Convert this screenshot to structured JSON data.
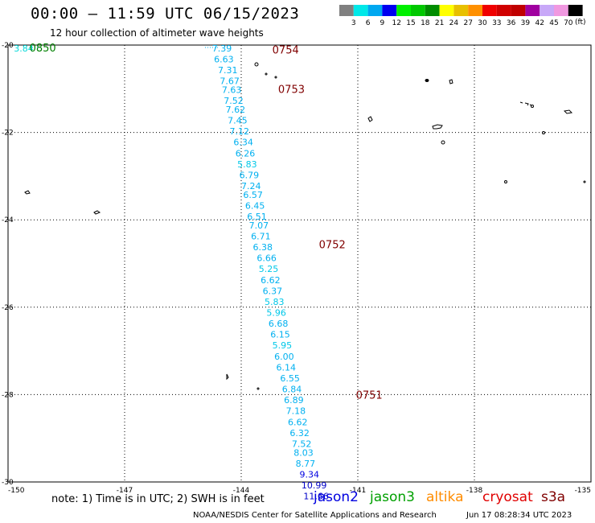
{
  "title": "00:00 – 11:59 UTC 06/15/2023",
  "subtitle": "12 hour collection of altimeter wave heights",
  "units_label": "(ft)",
  "color_scale": {
    "colors": [
      "#808080",
      "#00e8e8",
      "#00a8f0",
      "#0000f0",
      "#00f000",
      "#00c800",
      "#008c00",
      "#ffff00",
      "#e8c000",
      "#ff9000",
      "#f00000",
      "#d00000",
      "#c00000",
      "#a000a0",
      "#c8a8f8",
      "#f098e0",
      "#000000"
    ],
    "labels": [
      "3",
      "6",
      "9",
      "12",
      "15",
      "18",
      "21",
      "24",
      "27",
      "30",
      "33",
      "36",
      "39",
      "42",
      "45",
      "70"
    ]
  },
  "axes": {
    "lon_range": [
      -150,
      -135
    ],
    "lat_range": [
      -30,
      -20
    ],
    "lon_ticks": [
      "-150",
      "-147",
      "-144",
      "-141",
      "-138",
      "-135"
    ],
    "lat_ticks": [
      "-20",
      "-22",
      "-24",
      "-26",
      "-28",
      "-30"
    ]
  },
  "passes": [
    {
      "time": "0850",
      "color": "#008000",
      "lon": -149.45,
      "lat": -20.0
    },
    {
      "time": "0754",
      "color": "#800000",
      "lon": -143.2,
      "lat": -20.05
    },
    {
      "time": "0753",
      "color": "#800000",
      "lon": -143.05,
      "lat": -20.95
    },
    {
      "time": "0752",
      "color": "#800000",
      "lon": -142.0,
      "lat": -24.5
    },
    {
      "time": "0751",
      "color": "#800000",
      "lon": -141.05,
      "lat": -27.95
    }
  ],
  "green_track_values": [
    {
      "value": "3.84",
      "color": "#00d8d8",
      "lon": -149.85,
      "lat": -20.0
    }
  ],
  "swh_values": [
    {
      "value": "7.39",
      "color": "#00b0f0",
      "lon": -144.75,
      "lat": -20.0
    },
    {
      "value": "6.63",
      "color": "#00b0f0",
      "lon": -144.7,
      "lat": -20.25
    },
    {
      "value": "7.31",
      "color": "#00b0f0",
      "lon": -144.6,
      "lat": -20.5
    },
    {
      "value": "7.67",
      "color": "#00b0f0",
      "lon": -144.55,
      "lat": -20.75
    },
    {
      "value": "7.63",
      "color": "#00b0f0",
      "lon": -144.5,
      "lat": -20.95
    },
    {
      "value": "7.52",
      "color": "#00b0f0",
      "lon": -144.45,
      "lat": -21.2
    },
    {
      "value": "7.62",
      "color": "#00b0f0",
      "lon": -144.4,
      "lat": -21.4
    },
    {
      "value": "7.45",
      "color": "#00b0f0",
      "lon": -144.35,
      "lat": -21.65
    },
    {
      "value": "7.12",
      "color": "#00b0f0",
      "lon": -144.3,
      "lat": -21.9
    },
    {
      "value": "6.34",
      "color": "#00b0f0",
      "lon": -144.2,
      "lat": -22.15
    },
    {
      "value": "6.26",
      "color": "#00b0f0",
      "lon": -144.15,
      "lat": -22.4
    },
    {
      "value": "5.83",
      "color": "#00c8e8",
      "lon": -144.1,
      "lat": -22.65
    },
    {
      "value": "6.79",
      "color": "#00b0f0",
      "lon": -144.05,
      "lat": -22.9
    },
    {
      "value": "7.24",
      "color": "#00b0f0",
      "lon": -144.0,
      "lat": -23.15
    },
    {
      "value": "6.57",
      "color": "#00b0f0",
      "lon": -143.95,
      "lat": -23.35
    },
    {
      "value": "6.45",
      "color": "#00b0f0",
      "lon": -143.9,
      "lat": -23.6
    },
    {
      "value": "6.51",
      "color": "#00b0f0",
      "lon": -143.85,
      "lat": -23.85
    },
    {
      "value": "7.07",
      "color": "#00b0f0",
      "lon": -143.8,
      "lat": -24.05
    },
    {
      "value": "6.71",
      "color": "#00b0f0",
      "lon": -143.75,
      "lat": -24.3
    },
    {
      "value": "6.38",
      "color": "#00b0f0",
      "lon": -143.7,
      "lat": -24.55
    },
    {
      "value": "6.66",
      "color": "#00b0f0",
      "lon": -143.6,
      "lat": -24.8
    },
    {
      "value": "5.25",
      "color": "#00c8e8",
      "lon": -143.55,
      "lat": -25.05
    },
    {
      "value": "6.62",
      "color": "#00b0f0",
      "lon": -143.5,
      "lat": -25.3
    },
    {
      "value": "6.37",
      "color": "#00b0f0",
      "lon": -143.45,
      "lat": -25.55
    },
    {
      "value": "5.83",
      "color": "#00c8e8",
      "lon": -143.4,
      "lat": -25.8
    },
    {
      "value": "5.96",
      "color": "#00c8e8",
      "lon": -143.35,
      "lat": -26.05
    },
    {
      "value": "6.68",
      "color": "#00b0f0",
      "lon": -143.3,
      "lat": -26.3
    },
    {
      "value": "6.15",
      "color": "#00b0f0",
      "lon": -143.25,
      "lat": -26.55
    },
    {
      "value": "5.95",
      "color": "#00c8e8",
      "lon": -143.2,
      "lat": -26.8
    },
    {
      "value": "6.00",
      "color": "#00b0f0",
      "lon": -143.15,
      "lat": -27.05
    },
    {
      "value": "6.14",
      "color": "#00b0f0",
      "lon": -143.1,
      "lat": -27.3
    },
    {
      "value": "6.55",
      "color": "#00b0f0",
      "lon": -143.0,
      "lat": -27.55
    },
    {
      "value": "6.84",
      "color": "#00b0f0",
      "lon": -142.95,
      "lat": -27.8
    },
    {
      "value": "6.89",
      "color": "#00b0f0",
      "lon": -142.9,
      "lat": -28.05
    },
    {
      "value": "7.18",
      "color": "#00b0f0",
      "lon": -142.85,
      "lat": -28.3
    },
    {
      "value": "6.62",
      "color": "#00b0f0",
      "lon": -142.8,
      "lat": -28.55
    },
    {
      "value": "6.32",
      "color": "#00b0f0",
      "lon": -142.75,
      "lat": -28.8
    },
    {
      "value": "7.52",
      "color": "#00b0f0",
      "lon": -142.7,
      "lat": -29.05
    },
    {
      "value": "8.03",
      "color": "#00b0f0",
      "lon": -142.65,
      "lat": -29.25
    },
    {
      "value": "8.77",
      "color": "#00b0f0",
      "lon": -142.6,
      "lat": -29.5
    },
    {
      "value": "9.34",
      "color": "#0000e0",
      "lon": -142.5,
      "lat": -29.75
    },
    {
      "value": "10.99",
      "color": "#0000c8",
      "lon": -142.45,
      "lat": -30.0
    },
    {
      "value": "11.66",
      "color": "#0000c8",
      "lon": -142.4,
      "lat": -30.25
    }
  ],
  "footer": {
    "note": "note:  1) Time is in UTC;  2) SWH is in feet",
    "satellites": [
      {
        "name": "jason2",
        "color": "#0000e0"
      },
      {
        "name": "jason3",
        "color": "#00a000"
      },
      {
        "name": "altika",
        "color": "#ff8c00"
      },
      {
        "name": "cryosat",
        "color": "#e00000"
      },
      {
        "name": "s3a",
        "color": "#800000"
      }
    ],
    "credit": "NOAA/NESDIS Center for Satellite Applications and Research",
    "timestamp": "Jun 17 08:28:34 UTC 2023"
  }
}
